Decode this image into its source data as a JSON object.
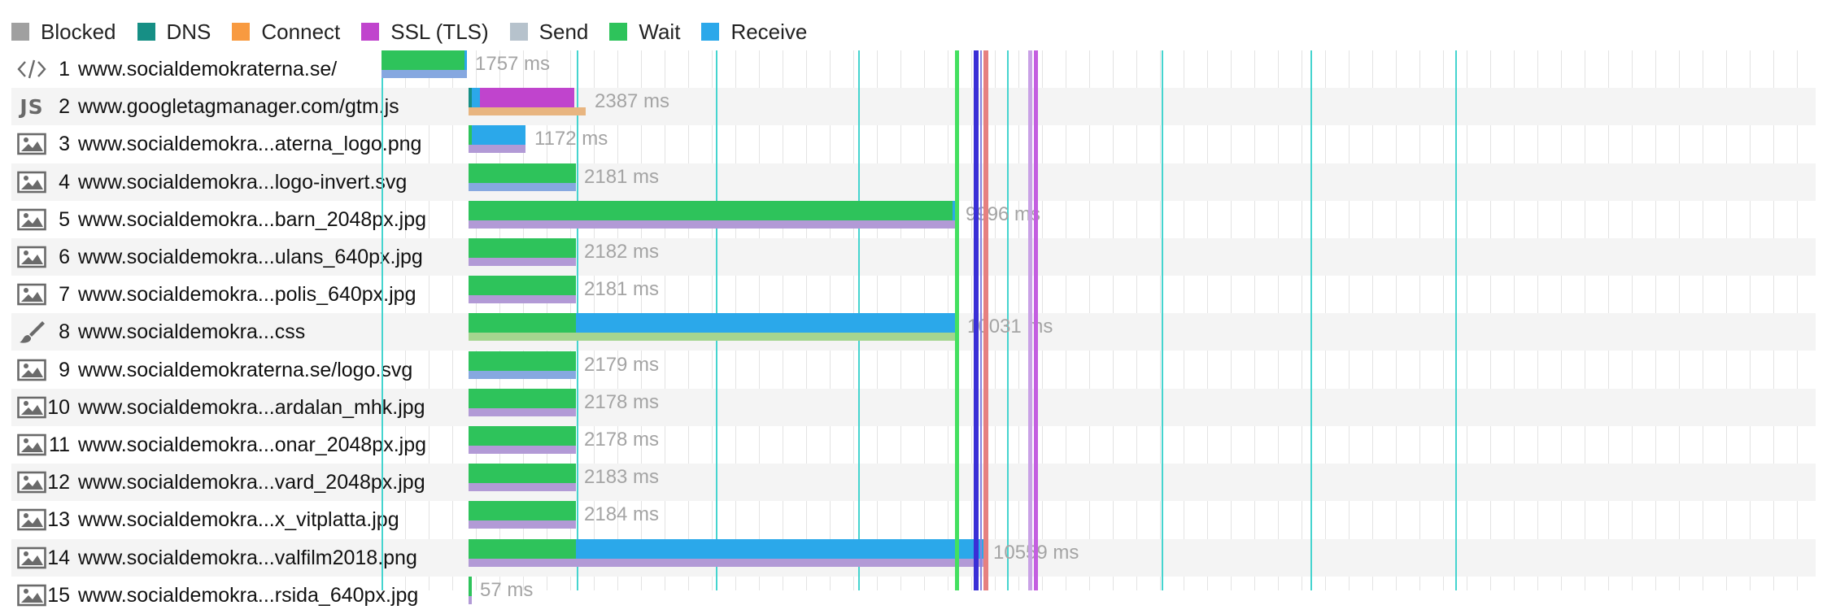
{
  "legend": [
    {
      "label": "Blocked",
      "color": "#a0a0a0"
    },
    {
      "label": "DNS",
      "color": "#168f85"
    },
    {
      "label": "Connect",
      "color": "#f89a40"
    },
    {
      "label": "SSL (TLS)",
      "color": "#c044cd"
    },
    {
      "label": "Send",
      "color": "#b6c2cc"
    },
    {
      "label": "Wait",
      "color": "#2ec35b"
    },
    {
      "label": "Receive",
      "color": "#2ba8ea"
    }
  ],
  "colors": {
    "wait": "#2ec35b",
    "receive": "#2ba8ea",
    "ssl": "#c044cd",
    "dns": "#168f85",
    "track_html": "#86a8e0",
    "track_js": "#e8b580",
    "track_img": "#b29ad6",
    "track_css": "#a5d58f",
    "grid": "#45d4cf",
    "dom_content_loaded": "#44e060",
    "first_paint": "#3a2fd6",
    "render_start": "#e68080",
    "on_load": "#c45ee0"
  },
  "requests": [
    {
      "num": "1",
      "url": "www.socialdemokraterna.se/",
      "icon": "code-icon",
      "duration": "1757 ms"
    },
    {
      "num": "2",
      "url": "www.googletagmanager.com/gtm.js",
      "icon": "js-icon",
      "duration": "2387 ms"
    },
    {
      "num": "3",
      "url": "www.socialdemokra...aterna_logo.png",
      "icon": "image-icon",
      "duration": "1172 ms"
    },
    {
      "num": "4",
      "url": "www.socialdemokra...logo-invert.svg",
      "icon": "image-icon",
      "duration": "2181 ms"
    },
    {
      "num": "5",
      "url": "www.socialdemokra...barn_2048px.jpg",
      "icon": "image-icon",
      "duration": "9996 ms"
    },
    {
      "num": "6",
      "url": "www.socialdemokra...ulans_640px.jpg",
      "icon": "image-icon",
      "duration": "2182 ms"
    },
    {
      "num": "7",
      "url": "www.socialdemokra...polis_640px.jpg",
      "icon": "image-icon",
      "duration": "2181 ms"
    },
    {
      "num": "8",
      "url": "www.socialdemokra...css",
      "icon": "brush-icon",
      "duration": "10031 ms"
    },
    {
      "num": "9",
      "url": "www.socialdemokraterna.se/logo.svg",
      "icon": "image-icon",
      "duration": "2179 ms"
    },
    {
      "num": "10",
      "url": "www.socialdemokra...ardalan_mhk.jpg",
      "icon": "image-icon",
      "duration": "2178 ms"
    },
    {
      "num": "11",
      "url": "www.socialdemokra...onar_2048px.jpg",
      "icon": "image-icon",
      "duration": "2178 ms"
    },
    {
      "num": "12",
      "url": "www.socialdemokra...vard_2048px.jpg",
      "icon": "image-icon",
      "duration": "2183 ms"
    },
    {
      "num": "13",
      "url": "www.socialdemokra...x_vitplatta.jpg",
      "icon": "image-icon",
      "duration": "2184 ms"
    },
    {
      "num": "14",
      "url": "www.socialdemokra...valfilm2018.png",
      "icon": "image-icon",
      "duration": "10559 ms"
    },
    {
      "num": "15",
      "url": "www.socialdemokra...rsida_640px.jpg",
      "icon": "image-icon",
      "duration": "57 ms"
    }
  ]
}
